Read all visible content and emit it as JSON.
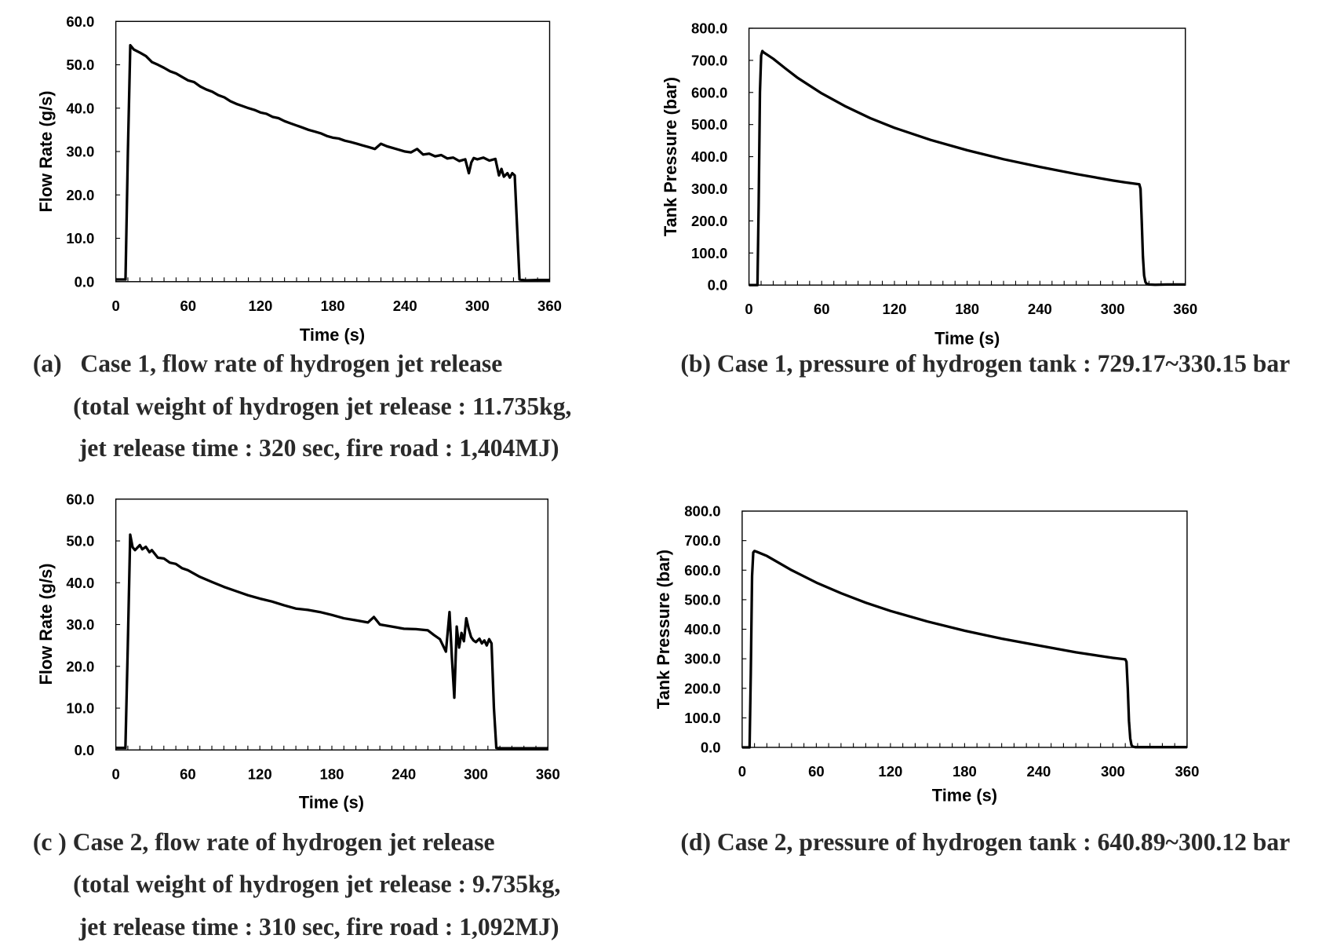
{
  "chart_data": [
    {
      "id": "a",
      "type": "line",
      "xlabel": "Time (s)",
      "ylabel": "Flow Rate (g/s)",
      "xlim": [
        0,
        360
      ],
      "ylim": [
        0,
        60
      ],
      "xticks": [
        "0",
        "60",
        "120",
        "180",
        "240",
        "300",
        "360"
      ],
      "yticks": [
        "0.0",
        "10.0",
        "20.0",
        "30.0",
        "40.0",
        "50.0",
        "60.0"
      ],
      "grid": false,
      "caption": [
        "(a)   Case 1, flow rate of hydrogen jet release",
        "(total weight of hydrogen jet release : 11.735kg,",
        "jet release time : 320 sec, fire road : 1,404MJ)"
      ],
      "series": [
        {
          "x": [
            0,
            8,
            10,
            12,
            15,
            20,
            25,
            30,
            35,
            40,
            45,
            50,
            55,
            60,
            65,
            70,
            75,
            80,
            85,
            90,
            95,
            100,
            105,
            110,
            115,
            120,
            125,
            130,
            135,
            140,
            145,
            150,
            155,
            160,
            165,
            170,
            175,
            180,
            185,
            190,
            195,
            200,
            205,
            210,
            215,
            220,
            225,
            230,
            235,
            240,
            245,
            250,
            255,
            260,
            265,
            270,
            275,
            280,
            285,
            290,
            293,
            295,
            297,
            300,
            305,
            310,
            315,
            318,
            320,
            322,
            325,
            327,
            329,
            331,
            335,
            340,
            350,
            360
          ],
          "y": [
            0.5,
            0.5,
            30,
            54.5,
            53.5,
            52.8,
            52.0,
            50.6,
            50.0,
            49.3,
            48.5,
            48.0,
            47.2,
            46.4,
            46.0,
            45.0,
            44.3,
            43.8,
            43.0,
            42.5,
            41.6,
            41.0,
            40.5,
            40.0,
            39.6,
            39.0,
            38.7,
            38.0,
            37.7,
            37.0,
            36.5,
            36.0,
            35.5,
            35.0,
            34.6,
            34.2,
            33.6,
            33.2,
            33.0,
            32.5,
            32.2,
            31.8,
            31.4,
            31.0,
            30.6,
            31.8,
            31.2,
            30.8,
            30.4,
            30.0,
            29.8,
            30.6,
            29.3,
            29.5,
            28.9,
            29.2,
            28.4,
            28.6,
            27.8,
            28.2,
            25.0,
            27.5,
            28.5,
            28.2,
            28.6,
            27.9,
            28.3,
            24.5,
            26.0,
            24.2,
            25.0,
            24.0,
            25.0,
            24.5,
            0.5,
            0.3,
            0.4,
            0.4
          ]
        }
      ]
    },
    {
      "id": "b",
      "type": "line",
      "xlabel": "Time (s)",
      "ylabel": "Tank Pressure (bar)",
      "xlim": [
        0,
        360
      ],
      "ylim": [
        0,
        800
      ],
      "xticks": [
        "0",
        "60",
        "120",
        "180",
        "240",
        "300",
        "360"
      ],
      "yticks": [
        "0.0",
        "100.0",
        "200.0",
        "300.0",
        "400.0",
        "500.0",
        "600.0",
        "700.0",
        "800.0"
      ],
      "grid": false,
      "caption": [
        "(b) Case 1, pressure of hydrogen tank : 729.17~330.15 bar"
      ],
      "series": [
        {
          "x": [
            0,
            7,
            8,
            9,
            10,
            11,
            12,
            20,
            30,
            40,
            60,
            80,
            100,
            120,
            150,
            180,
            210,
            240,
            270,
            300,
            310,
            322,
            323,
            324,
            325,
            326,
            327,
            328,
            330,
            335,
            345,
            360
          ],
          "y": [
            0,
            0,
            250,
            600,
            715,
            729,
            725,
            705,
            675,
            646,
            597,
            556,
            520,
            490,
            452,
            420,
            392,
            368,
            346,
            326,
            320,
            314,
            300,
            200,
            90,
            30,
            10,
            4,
            2,
            1,
            2,
            2
          ]
        }
      ]
    },
    {
      "id": "c",
      "type": "line",
      "xlabel": "Time (s)",
      "ylabel": "Flow Rate (g/s)",
      "xlim": [
        0,
        360
      ],
      "ylim": [
        0,
        60
      ],
      "xticks": [
        "0",
        "60",
        "120",
        "180",
        "240",
        "300",
        "360"
      ],
      "yticks": [
        "0.0",
        "10.0",
        "20.0",
        "30.0",
        "40.0",
        "50.0",
        "60.0"
      ],
      "grid": false,
      "caption": [
        "(c ) Case 2, flow rate of hydrogen jet release",
        "(total weight of hydrogen jet release : 9.735kg,",
        "jet release time : 310 sec, fire road : 1,092MJ)"
      ],
      "series": [
        {
          "x": [
            0,
            8,
            10,
            12,
            14,
            16,
            20,
            22,
            25,
            28,
            30,
            35,
            40,
            45,
            50,
            55,
            60,
            70,
            80,
            90,
            100,
            110,
            120,
            130,
            140,
            150,
            160,
            170,
            180,
            190,
            200,
            210,
            215,
            220,
            230,
            240,
            250,
            260,
            265,
            270,
            275,
            278,
            280,
            282,
            284,
            286,
            288,
            290,
            292,
            294,
            296,
            298,
            300,
            303,
            305,
            307,
            309,
            311,
            313,
            315,
            317,
            320,
            330,
            340,
            350,
            360
          ],
          "y": [
            0.5,
            0.5,
            25,
            51.5,
            48.5,
            47.8,
            49.0,
            48.0,
            48.6,
            47.3,
            47.8,
            46.0,
            45.8,
            44.8,
            44.5,
            43.5,
            43.0,
            41.4,
            40.2,
            39.0,
            38.0,
            37.0,
            36.2,
            35.5,
            34.6,
            33.8,
            33.5,
            33.0,
            32.3,
            31.5,
            31.0,
            30.5,
            31.8,
            30.0,
            29.5,
            29.0,
            28.9,
            28.6,
            27.5,
            26.5,
            23.5,
            33.0,
            22.0,
            12.5,
            29.5,
            24.5,
            28.0,
            26.0,
            31.5,
            29.0,
            27.0,
            26.2,
            25.8,
            26.6,
            25.5,
            26.2,
            25.0,
            26.5,
            25.5,
            10.0,
            0.5,
            0.4,
            0.4,
            0.4,
            0.4,
            0.4
          ]
        }
      ]
    },
    {
      "id": "d",
      "type": "line",
      "xlabel": "Time (s)",
      "ylabel": "Tank Pressure (bar)",
      "xlim": [
        0,
        360
      ],
      "ylim": [
        0,
        800
      ],
      "xticks": [
        "0",
        "60",
        "120",
        "180",
        "240",
        "300",
        "360"
      ],
      "yticks": [
        "0.0",
        "100.0",
        "200.0",
        "300.0",
        "400.0",
        "500.0",
        "600.0",
        "700.0",
        "800.0"
      ],
      "grid": false,
      "caption": [
        "(d) Case 2, pressure of hydrogen tank : 640.89~300.12 bar"
      ],
      "series": [
        {
          "x": [
            0,
            6,
            7,
            8,
            9,
            10,
            12,
            20,
            30,
            40,
            60,
            80,
            100,
            120,
            150,
            180,
            210,
            240,
            270,
            300,
            310,
            311,
            312,
            313,
            314,
            315,
            316,
            318,
            320,
            330,
            345,
            360
          ],
          "y": [
            0,
            0,
            250,
            580,
            660,
            665,
            662,
            648,
            624,
            600,
            558,
            522,
            490,
            462,
            426,
            395,
            368,
            345,
            322,
            303,
            298,
            290,
            200,
            90,
            30,
            8,
            3,
            1,
            1,
            1,
            1,
            1
          ]
        }
      ]
    }
  ]
}
